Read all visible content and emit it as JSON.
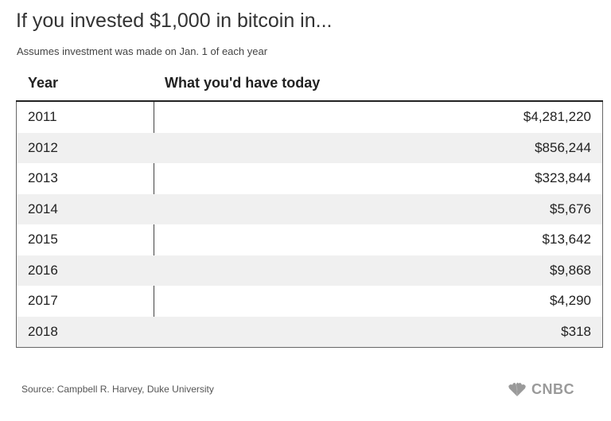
{
  "header": {
    "title": "If you invested $1,000 in bitcoin in...",
    "subtitle": "Assumes investment was made on Jan. 1 of each year"
  },
  "chart_data": {
    "type": "table",
    "columns": [
      "Year",
      "What you'd have today"
    ],
    "rows": [
      {
        "year": "2011",
        "value": "$4,281,220"
      },
      {
        "year": "2012",
        "value": "$856,244"
      },
      {
        "year": "2013",
        "value": "$323,844"
      },
      {
        "year": "2014",
        "value": "$5,676"
      },
      {
        "year": "2015",
        "value": "$13,642"
      },
      {
        "year": "2016",
        "value": "$9,868"
      },
      {
        "year": "2017",
        "value": "$4,290"
      },
      {
        "year": "2018",
        "value": "$318"
      }
    ]
  },
  "footer": {
    "source": "Source: Campbell R. Harvey, Duke University",
    "logo_text": "CNBC",
    "logo_icon": "peacock-icon",
    "logo_color": "#9a9a9a"
  }
}
